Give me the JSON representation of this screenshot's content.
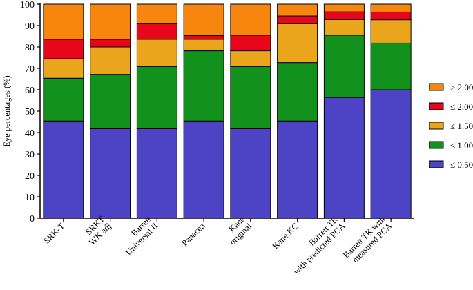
{
  "chart_data": {
    "type": "bar",
    "stacked": true,
    "title": "",
    "xlabel": "",
    "ylabel": "Eye percentages (%)",
    "ylim": [
      0,
      100
    ],
    "yticks": [
      0,
      10,
      20,
      30,
      40,
      50,
      60,
      70,
      80,
      90,
      100
    ],
    "legend_position": "right",
    "categories": [
      [
        "SRK-T"
      ],
      [
        "SRKT",
        "WK adj"
      ],
      [
        "Barrett",
        "Universal II"
      ],
      [
        "Panacea"
      ],
      [
        "Kane",
        "original"
      ],
      [
        "Kane KC"
      ],
      [
        "Barrett TK",
        "with predicted PCA"
      ],
      [
        "Barrett TK with",
        "measured PCA"
      ]
    ],
    "series": [
      {
        "name": "≤ 0.50",
        "color": "#4C44C4",
        "values": [
          45.4,
          41.8,
          41.8,
          45.4,
          41.8,
          45.4,
          56.4,
          60.0
        ]
      },
      {
        "name": "≤ 1.00",
        "color": "#12911D",
        "values": [
          20.0,
          25.4,
          29.1,
          32.8,
          29.1,
          27.3,
          29.1,
          21.8
        ]
      },
      {
        "name": "≤ 1.50",
        "color": "#EAA51C",
        "values": [
          9.1,
          12.8,
          12.7,
          5.4,
          7.3,
          18.2,
          7.3,
          10.9
        ]
      },
      {
        "name": "≤ 2.00",
        "color": "#E8061B",
        "values": [
          9.1,
          3.6,
          7.3,
          1.8,
          7.3,
          3.6,
          3.6,
          3.6
        ]
      },
      {
        "name": "> 2.00",
        "color": "#F7860F",
        "values": [
          16.4,
          16.4,
          9.1,
          14.6,
          14.5,
          5.5,
          3.6,
          3.7
        ]
      }
    ]
  }
}
